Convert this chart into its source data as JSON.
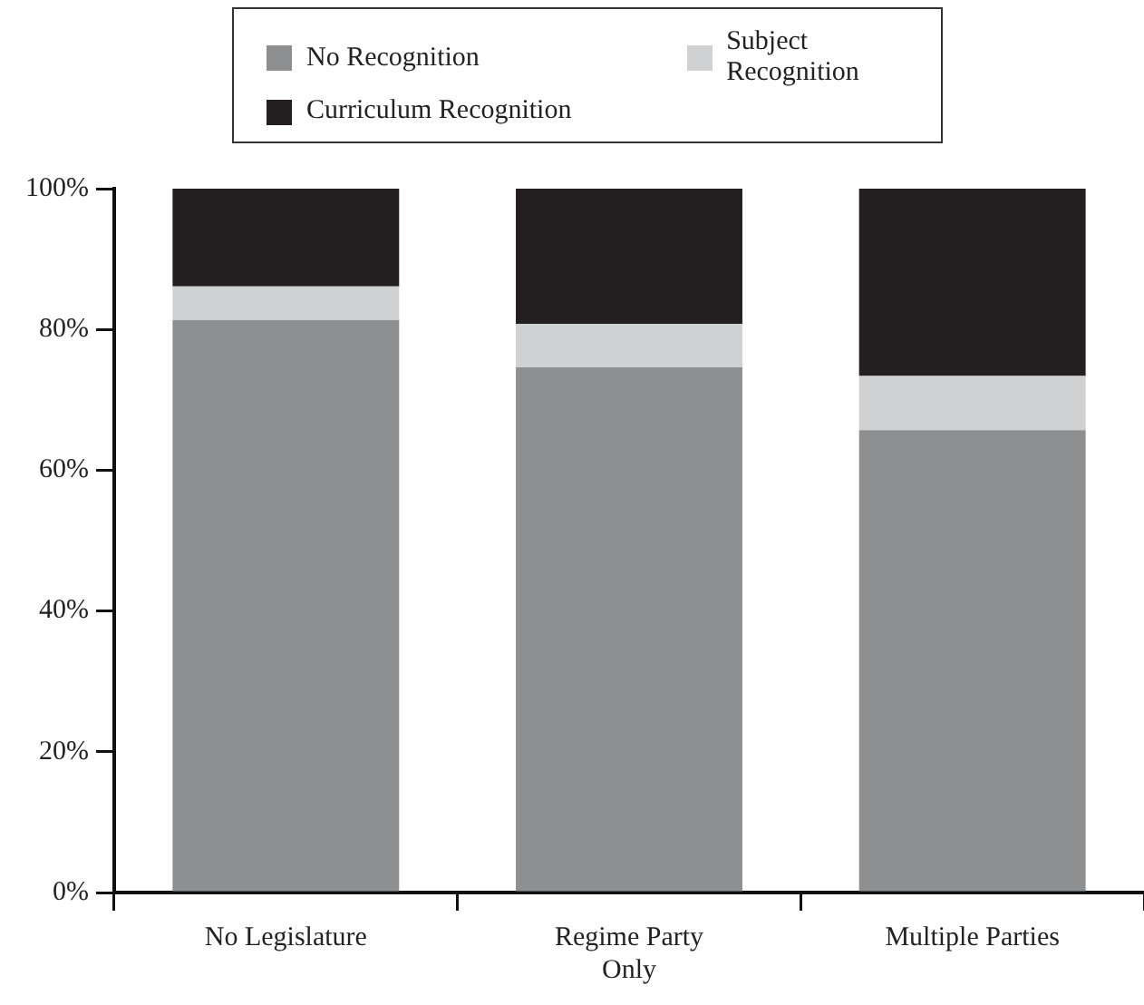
{
  "chart_data": {
    "type": "bar",
    "stacked": true,
    "legend": "top",
    "categories": [
      "No Legislature",
      "Regime Party Only",
      "Multiple Parties"
    ],
    "series": [
      {
        "name": "No Recognition",
        "color": "#8e8f91",
        "values": [
          81.3,
          74.6,
          65.7
        ]
      },
      {
        "name": "Subject Recognition",
        "color": "#d0d1d3",
        "values": [
          4.8,
          6.2,
          7.7
        ]
      },
      {
        "name": "Curriculum Recognition",
        "color": "#231f20",
        "values": [
          13.9,
          19.2,
          26.6
        ]
      }
    ],
    "ylim": [
      0,
      100
    ],
    "yticks": [
      {
        "value": 0,
        "label": "0%"
      },
      {
        "value": 20,
        "label": "20%"
      },
      {
        "value": 40,
        "label": "40%"
      },
      {
        "value": 60,
        "label": "60%"
      },
      {
        "value": 80,
        "label": "80%"
      },
      {
        "value": 100,
        "label": "100%"
      }
    ],
    "grid": false
  }
}
